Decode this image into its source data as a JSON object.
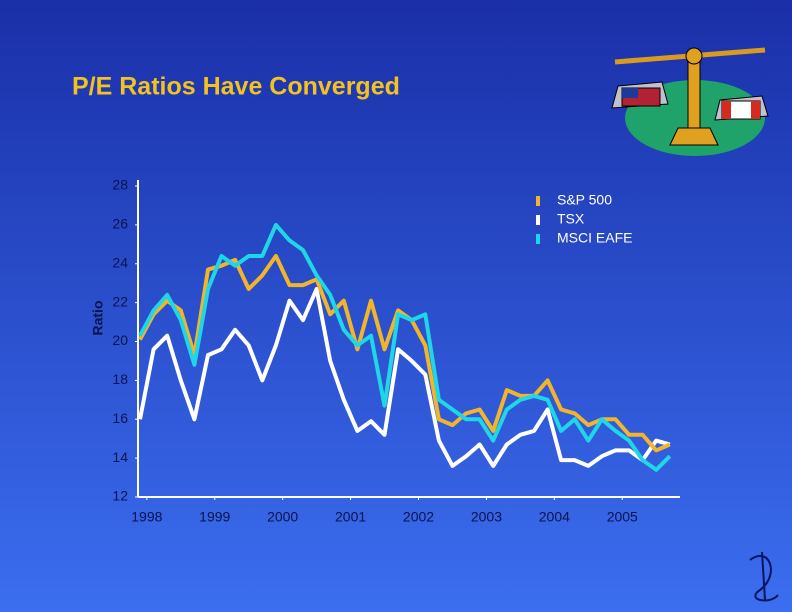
{
  "chart_data": {
    "type": "line",
    "title": "P/E Ratios Have Converged",
    "y_label": "Ratio",
    "x": [
      1997.9,
      1998.1,
      1998.3,
      1998.5,
      1998.7,
      1998.9,
      1999.1,
      1999.3,
      1999.5,
      1999.7,
      1999.9,
      2000.1,
      2000.3,
      2000.5,
      2000.7,
      2000.9,
      2001.1,
      2001.3,
      2001.5,
      2001.7,
      2001.9,
      2002.1,
      2002.3,
      2002.5,
      2002.7,
      2002.9,
      2003.1,
      2003.3,
      2003.5,
      2003.7,
      2003.9,
      2004.1,
      2004.3,
      2004.5,
      2004.7,
      2004.9,
      2005.1,
      2005.3,
      2005.5,
      2005.7
    ],
    "series": [
      {
        "name": "S&P 500",
        "color": "#f2b52a",
        "values": [
          20.1,
          21.4,
          22.1,
          21.6,
          19.3,
          23.7,
          23.9,
          24.2,
          22.7,
          23.4,
          24.4,
          22.9,
          22.9,
          23.2,
          21.4,
          22.1,
          19.6,
          22.1,
          19.6,
          21.6,
          21.1,
          19.8,
          16.0,
          15.7,
          16.3,
          16.5,
          15.4,
          17.5,
          17.2,
          17.2,
          18.0,
          16.5,
          16.3,
          15.7,
          16.0,
          16.0,
          15.2,
          15.2,
          14.4,
          14.7
        ]
      },
      {
        "name": "TSX",
        "color": "#ffffff",
        "values": [
          16.0,
          19.6,
          20.3,
          18.0,
          16.0,
          19.3,
          19.6,
          20.6,
          19.8,
          18.0,
          19.8,
          22.1,
          21.1,
          22.7,
          19.0,
          17.0,
          15.4,
          15.9,
          15.2,
          19.6,
          19.0,
          18.3,
          14.9,
          13.6,
          14.1,
          14.7,
          13.6,
          14.7,
          15.2,
          15.4,
          16.5,
          13.9,
          13.9,
          13.6,
          14.1,
          14.4,
          14.4,
          13.9,
          14.9,
          14.7
        ]
      },
      {
        "name": "MSCI EAFE",
        "color": "#1fd6e6",
        "values": [
          20.3,
          21.6,
          22.4,
          21.1,
          18.8,
          22.7,
          24.4,
          23.9,
          24.4,
          24.4,
          26.0,
          25.2,
          24.7,
          23.4,
          22.4,
          20.6,
          19.8,
          20.3,
          16.7,
          21.4,
          21.1,
          21.4,
          17.0,
          16.5,
          16.0,
          16.0,
          14.9,
          16.5,
          17.0,
          17.2,
          17.0,
          15.4,
          16.0,
          14.9,
          16.0,
          15.4,
          14.9,
          13.9,
          13.4,
          14.1
        ]
      }
    ],
    "xlim": [
      1997.87,
      2005.85
    ],
    "xticks": [
      1998,
      1999,
      2000,
      2001,
      2002,
      2003,
      2004,
      2005
    ],
    "ylim": [
      12,
      28
    ],
    "yticks": [
      12,
      14,
      16,
      18,
      20,
      22,
      24,
      26,
      28
    ],
    "grid": false,
    "legend": "upper right"
  }
}
